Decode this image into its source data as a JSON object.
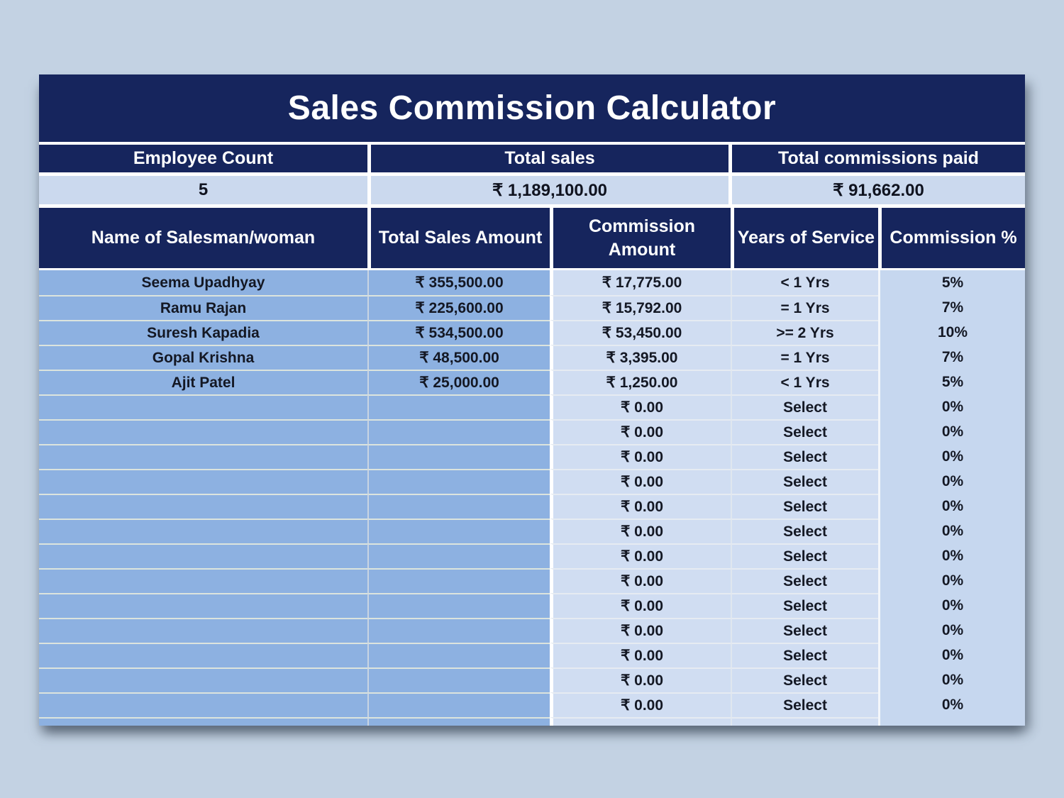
{
  "title": "Sales Commission Calculator",
  "summary": {
    "cols": [
      {
        "label": "Employee Count",
        "value": "5"
      },
      {
        "label": "Total sales",
        "value": "₹ 1,189,100.00"
      },
      {
        "label": "Total commissions paid",
        "value": "₹ 91,662.00"
      }
    ]
  },
  "table": {
    "headers": [
      "Name of Salesman/woman",
      "Total Sales Amount",
      "Commission Amount",
      "Years of Service",
      "Commission %"
    ],
    "rows": [
      {
        "name": "Seema Upadhyay",
        "total_sales": "₹ 355,500.00",
        "commission": "₹ 17,775.00",
        "years": "< 1 Yrs",
        "pct": "5%"
      },
      {
        "name": "Ramu Rajan",
        "total_sales": "₹ 225,600.00",
        "commission": "₹ 15,792.00",
        "years": "= 1 Yrs",
        "pct": "7%"
      },
      {
        "name": "Suresh Kapadia",
        "total_sales": "₹ 534,500.00",
        "commission": "₹ 53,450.00",
        "years": ">= 2 Yrs",
        "pct": "10%"
      },
      {
        "name": "Gopal Krishna",
        "total_sales": "₹ 48,500.00",
        "commission": "₹ 3,395.00",
        "years": "= 1 Yrs",
        "pct": "7%"
      },
      {
        "name": "Ajit Patel",
        "total_sales": "₹ 25,000.00",
        "commission": "₹ 1,250.00",
        "years": "< 1 Yrs",
        "pct": "5%"
      },
      {
        "name": "",
        "total_sales": "",
        "commission": "₹ 0.00",
        "years": "Select",
        "pct": "0%"
      },
      {
        "name": "",
        "total_sales": "",
        "commission": "₹ 0.00",
        "years": "Select",
        "pct": "0%"
      },
      {
        "name": "",
        "total_sales": "",
        "commission": "₹ 0.00",
        "years": "Select",
        "pct": "0%"
      },
      {
        "name": "",
        "total_sales": "",
        "commission": "₹ 0.00",
        "years": "Select",
        "pct": "0%"
      },
      {
        "name": "",
        "total_sales": "",
        "commission": "₹ 0.00",
        "years": "Select",
        "pct": "0%"
      },
      {
        "name": "",
        "total_sales": "",
        "commission": "₹ 0.00",
        "years": "Select",
        "pct": "0%"
      },
      {
        "name": "",
        "total_sales": "",
        "commission": "₹ 0.00",
        "years": "Select",
        "pct": "0%"
      },
      {
        "name": "",
        "total_sales": "",
        "commission": "₹ 0.00",
        "years": "Select",
        "pct": "0%"
      },
      {
        "name": "",
        "total_sales": "",
        "commission": "₹ 0.00",
        "years": "Select",
        "pct": "0%"
      },
      {
        "name": "",
        "total_sales": "",
        "commission": "₹ 0.00",
        "years": "Select",
        "pct": "0%"
      },
      {
        "name": "",
        "total_sales": "",
        "commission": "₹ 0.00",
        "years": "Select",
        "pct": "0%"
      },
      {
        "name": "",
        "total_sales": "",
        "commission": "₹ 0.00",
        "years": "Select",
        "pct": "0%"
      },
      {
        "name": "",
        "total_sales": "",
        "commission": "₹ 0.00",
        "years": "Select",
        "pct": "0%"
      }
    ]
  }
}
